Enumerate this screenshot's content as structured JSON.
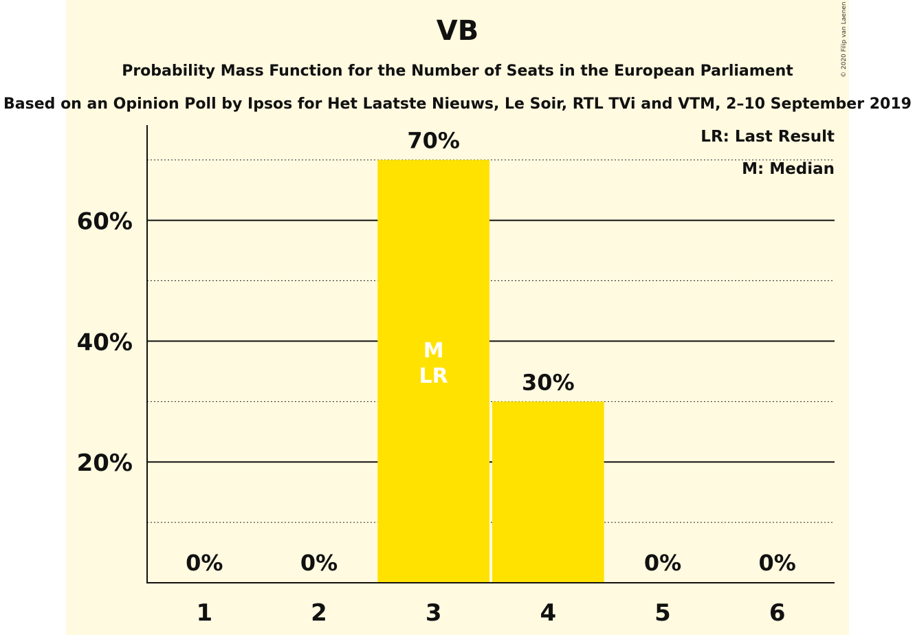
{
  "chart_data": {
    "type": "bar",
    "title": "VB",
    "subtitle": "Probability Mass Function for the Number of Seats in the European Parliament",
    "subtitle2": "Based on an Opinion Poll by Ipsos for Het Laatste Nieuws, Le Soir, RTL TVi and VTM, 2–10 September 2019",
    "copyright": "© 2020 Filip van Laenen",
    "categories": [
      "1",
      "2",
      "3",
      "4",
      "5",
      "6"
    ],
    "values": [
      0,
      0,
      70,
      30,
      0,
      0
    ],
    "value_labels": [
      "0%",
      "0%",
      "70%",
      "30%",
      "0%",
      "0%"
    ],
    "ylim": [
      0,
      76
    ],
    "y_ticks": [
      20,
      40,
      60
    ],
    "y_tick_labels": [
      "20%",
      "40%",
      "60%"
    ],
    "y_minor_gridlines": [
      10,
      30,
      50,
      70
    ],
    "bar_annotations": [
      {
        "category": "3",
        "lines": [
          "M",
          "LR"
        ]
      }
    ],
    "legend": [
      "LR: Last Result",
      "M: Median"
    ],
    "bar_color": "#FFE200",
    "background_color": "#FFFAE0"
  }
}
